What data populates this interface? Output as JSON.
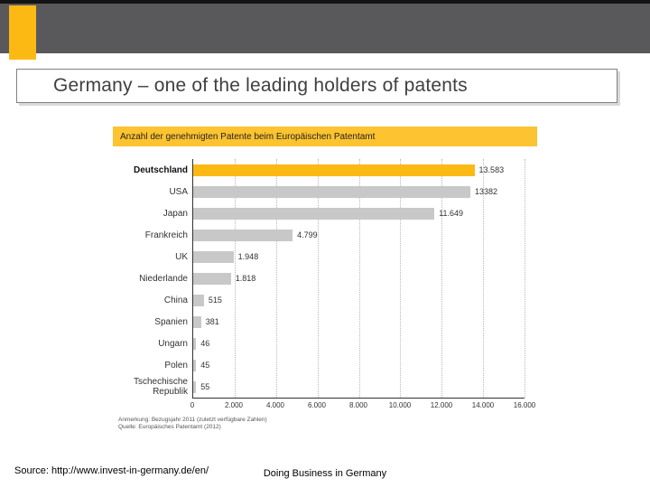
{
  "slide": {
    "title": "Germany – one of the leading holders of patents",
    "source": "Source: http://www.invest-in-germany.de/en/",
    "footer": "Doing Business in Germany",
    "accent_color": "#fdb913",
    "band_color": "#59595b"
  },
  "chart_data": {
    "type": "bar",
    "orientation": "horizontal",
    "title": "Anzahl der genehmigten Patente beim Europäischen Patentamt",
    "categories": [
      "Deutschland",
      "USA",
      "Japan",
      "Frankreich",
      "UK",
      "Niederlande",
      "China",
      "Spanien",
      "Ungarn",
      "Polen",
      "Tschechische Republik"
    ],
    "values": [
      13583,
      13382,
      11649,
      4799,
      1948,
      1818,
      515,
      381,
      46,
      45,
      55
    ],
    "value_labels": [
      "13.583",
      "13382",
      "11.649",
      "4.799",
      "1.948",
      "1.818",
      "515",
      "381",
      "46",
      "45",
      "55"
    ],
    "highlight_index": 0,
    "bar_color": "#c8c8c8",
    "highlight_color": "#fdb913",
    "xlim": [
      0,
      16000
    ],
    "xticks": [
      0,
      2000,
      4000,
      6000,
      8000,
      10000,
      12000,
      14000,
      16000
    ],
    "xtick_labels": [
      "0",
      "2.000",
      "4.000",
      "6.000",
      "8.000",
      "10.000",
      "12.000",
      "14.000",
      "16.000"
    ],
    "grid": "dotted-vertical",
    "legend": "none",
    "footnotes": [
      "Anmerkung: Bezugsjahr 2011 (zuletzt verfügbare Zahlen)",
      "Quelle: Europäisches Patentamt (2012)"
    ]
  }
}
